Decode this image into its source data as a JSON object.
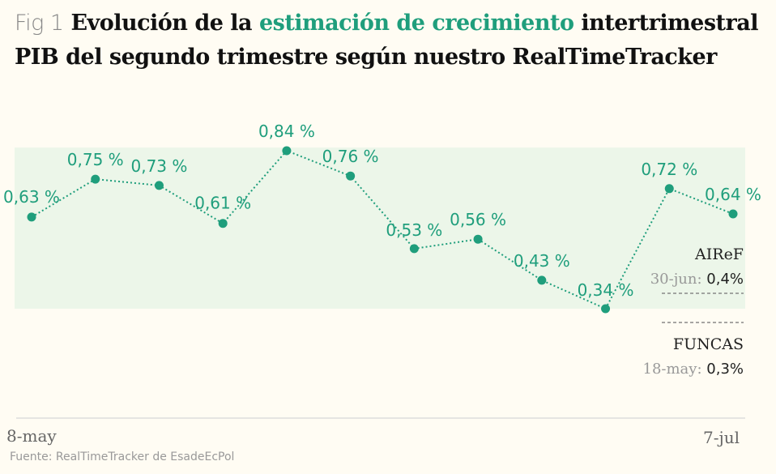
{
  "title": {
    "fig": "Fig 1",
    "part1": "Evolución de la",
    "highlight": "estimación de crecimiento",
    "part2": "intertrimestral",
    "line2": "PIB del segundo trimestre según nuestro RealTimeTracker"
  },
  "source": "Fuente: RealTimeTracker de EsadeEcPol",
  "colors": {
    "accent": "#1f9e7c",
    "band": "#ecf6e9",
    "background": "#fffcf3"
  },
  "chart_data": {
    "type": "line",
    "title": "Evolución de la estimación de crecimiento intertrimestral PIB del segundo trimestre según nuestro RealTimeTracker",
    "x_start_label": "8-may",
    "x_end_label": "7-jul",
    "values": [
      0.63,
      0.75,
      0.73,
      0.61,
      0.84,
      0.76,
      0.53,
      0.56,
      0.43,
      0.34,
      0.72,
      0.64
    ],
    "labels": [
      "0,63 %",
      "0,75 %",
      "0,73 %",
      "0,61 %",
      "0,84 %",
      "0,76 %",
      "0,53 %",
      "0,56 %",
      "0,43 %",
      "0,34 %",
      "0,72 %",
      "0,64 %"
    ],
    "band": [
      0.34,
      0.85
    ],
    "references": [
      {
        "name": "AIReF",
        "date": "30-jun:",
        "value_label": "0,4%",
        "value": 0.4
      },
      {
        "name": "FUNCAS",
        "date": "18-may:",
        "value_label": "0,3%",
        "value": 0.3
      }
    ]
  }
}
